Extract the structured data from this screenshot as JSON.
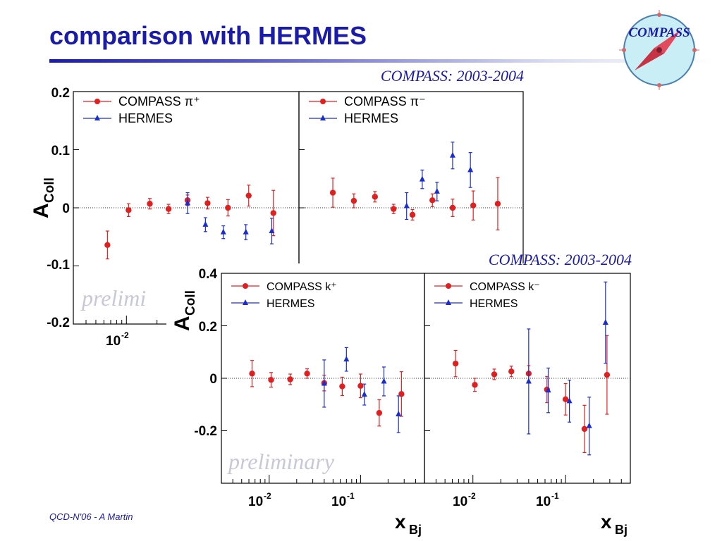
{
  "title": "comparison with HERMES",
  "footer": "QCD-N'06  -  A Martin",
  "logo_text": "COMPASS",
  "colors": {
    "title": "#1b1baa",
    "compass": "#e02020",
    "hermes": "#1a2ed0",
    "logo_bg": "#c9eef5",
    "logo_needle": "#e24b5e"
  },
  "top_figure": {
    "collab_label": "COMPASS: 2003-2004",
    "ylabel_main": "A",
    "ylabel_sub": "Coll",
    "watermark": "prelimi",
    "y_ticks": [
      "0.2",
      "0.1",
      "0",
      "-0.1",
      "-0.2"
    ],
    "x_tick_labels": [
      {
        "base": "10",
        "exp": "-2"
      }
    ]
  },
  "bottom_figure": {
    "collab_label": "COMPASS: 2003-2004",
    "ylabel_main": "A",
    "ylabel_sub": "Coll",
    "watermark": "preliminary",
    "y_ticks": [
      "0.4",
      "0.2",
      "0",
      "-0.2"
    ],
    "x_tick_labels": [
      {
        "base": "10",
        "exp": "-2"
      },
      {
        "base": "10",
        "exp": "-1"
      }
    ],
    "xlabel_main": "x",
    "xlabel_sub": "Bj"
  },
  "chart_data": [
    {
      "type": "scatter",
      "title": "COMPASS: 2003-2004",
      "ylabel": "A_Coll",
      "xscale": "log",
      "xlim": [
        0.003,
        0.5
      ],
      "ylim": [
        -0.2,
        0.2
      ],
      "legend_position": "top-left",
      "series": [
        {
          "name": "COMPASS π⁺",
          "x": [
            0.0065,
            0.0105,
            0.017,
            0.026,
            0.04,
            0.063,
            0.1,
            0.16,
            0.28
          ],
          "y": [
            -0.064,
            -0.004,
            0.007,
            -0.002,
            0.013,
            0.008,
            0.0,
            0.021,
            -0.009
          ],
          "err": [
            0.024,
            0.011,
            0.009,
            0.008,
            0.009,
            0.01,
            0.014,
            0.018,
            0.039
          ]
        },
        {
          "name": "HERMES",
          "x": [
            0.04,
            0.06,
            0.09,
            0.15,
            0.27
          ],
          "y": [
            0.008,
            -0.029,
            -0.042,
            -0.042,
            -0.04
          ],
          "err": [
            0.018,
            0.012,
            0.011,
            0.013,
            0.022
          ]
        }
      ]
    },
    {
      "type": "scatter",
      "title": "COMPASS: 2003-2004",
      "xscale": "log",
      "xlim": [
        0.003,
        0.5
      ],
      "ylim": [
        -0.2,
        0.2
      ],
      "legend_position": "top-left",
      "series": [
        {
          "name": "COMPASS π⁻",
          "x": [
            0.0065,
            0.0105,
            0.017,
            0.026,
            0.04,
            0.063,
            0.1,
            0.16,
            0.28
          ],
          "y": [
            0.026,
            0.012,
            0.019,
            -0.002,
            -0.012,
            0.013,
            0.0,
            0.004,
            0.007
          ],
          "err": [
            0.025,
            0.012,
            0.009,
            0.008,
            0.009,
            0.011,
            0.015,
            0.025,
            0.045
          ]
        },
        {
          "name": "HERMES",
          "x": [
            0.035,
            0.05,
            0.07,
            0.1,
            0.15
          ],
          "y": [
            0.003,
            0.049,
            0.028,
            0.09,
            0.065
          ],
          "err": [
            0.023,
            0.016,
            0.016,
            0.023,
            0.03
          ]
        }
      ]
    },
    {
      "type": "scatter",
      "title": "COMPASS: 2003-2004",
      "ylabel": "A_Coll",
      "xlabel": "x_Bj",
      "xscale": "log",
      "xlim": [
        0.003,
        0.5
      ],
      "ylim": [
        -0.4,
        0.4
      ],
      "legend_position": "top-left",
      "series": [
        {
          "name": "COMPASS k⁺",
          "x": [
            0.0065,
            0.0105,
            0.017,
            0.026,
            0.04,
            0.063,
            0.1,
            0.16,
            0.28
          ],
          "y": [
            0.018,
            -0.006,
            -0.004,
            0.018,
            -0.018,
            -0.031,
            -0.029,
            -0.132,
            -0.06
          ],
          "err": [
            0.05,
            0.028,
            0.02,
            0.018,
            0.03,
            0.035,
            0.045,
            0.05,
            0.085
          ]
        },
        {
          "name": "HERMES",
          "x": [
            0.04,
            0.07,
            0.11,
            0.18,
            0.26
          ],
          "y": [
            -0.02,
            0.072,
            -0.062,
            -0.012,
            -0.137
          ],
          "err": [
            0.09,
            0.045,
            0.04,
            0.055,
            0.07
          ]
        }
      ]
    },
    {
      "type": "scatter",
      "title": "COMPASS: 2003-2004",
      "xlabel": "x_Bj",
      "xscale": "log",
      "xlim": [
        0.003,
        0.5
      ],
      "ylim": [
        -0.4,
        0.4
      ],
      "legend_position": "top-left",
      "series": [
        {
          "name": "COMPASS k⁻",
          "x": [
            0.0065,
            0.0105,
            0.017,
            0.026,
            0.04,
            0.063,
            0.1,
            0.16,
            0.28
          ],
          "y": [
            0.056,
            -0.025,
            0.015,
            0.026,
            0.018,
            -0.043,
            -0.08,
            -0.193,
            0.013
          ],
          "err": [
            0.05,
            0.025,
            0.02,
            0.02,
            0.03,
            0.05,
            0.06,
            0.09,
            0.15
          ]
        },
        {
          "name": "HERMES",
          "x": [
            0.04,
            0.065,
            0.11,
            0.18,
            0.27
          ],
          "y": [
            -0.012,
            -0.046,
            -0.087,
            -0.182,
            0.212
          ],
          "err": [
            0.2,
            0.085,
            0.08,
            0.11,
            0.155
          ]
        }
      ]
    }
  ]
}
